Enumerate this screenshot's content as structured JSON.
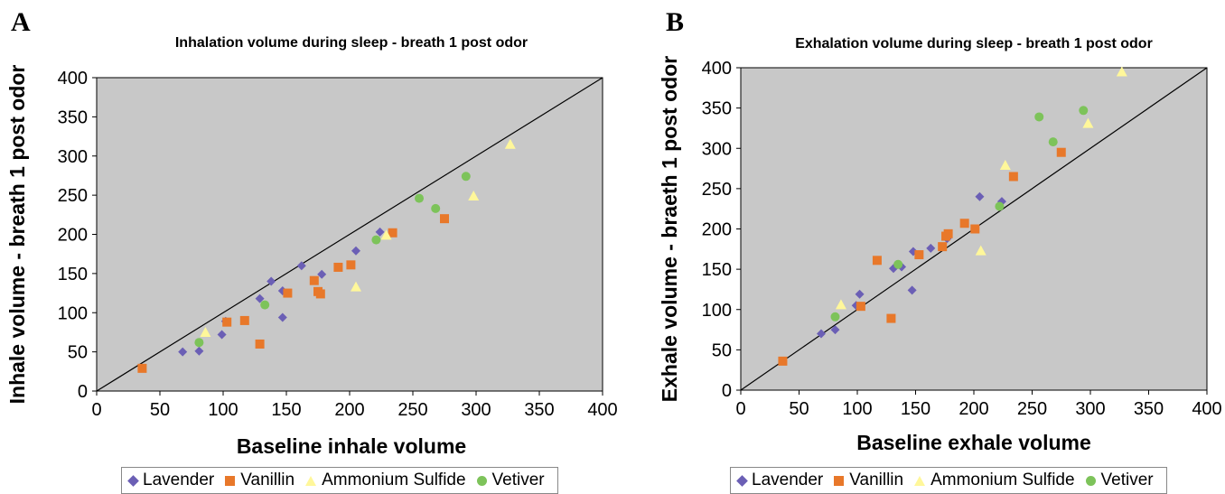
{
  "panels": [
    {
      "letter": "A"
    },
    {
      "letter": "B"
    }
  ],
  "legend": [
    {
      "name": "Lavender",
      "color": "#6b5fb5",
      "marker": "diamond"
    },
    {
      "name": "Vanillin",
      "color": "#e8782a",
      "marker": "square"
    },
    {
      "name": "Ammonium Sulfide",
      "color": "#fff79a",
      "marker": "triangle"
    },
    {
      "name": "Vetiver",
      "color": "#7dc35a",
      "marker": "circle"
    }
  ],
  "chart_data": [
    {
      "type": "scatter",
      "title": "Inhalation volume during sleep - breath 1 post odor",
      "xlabel": "Baseline inhale volume",
      "ylabel": "Inhale volume - breath 1 post odor",
      "xlim": [
        0,
        400
      ],
      "ylim": [
        0,
        400
      ],
      "xticks": [
        0,
        50,
        100,
        150,
        200,
        250,
        300,
        350,
        400
      ],
      "yticks": [
        0,
        50,
        100,
        150,
        200,
        250,
        300,
        350,
        400
      ],
      "plot_background": "#c8c8c8",
      "reference_line": "y = x",
      "legend_position": "bottom",
      "series": [
        {
          "name": "Lavender",
          "points": [
            [
              68,
              50
            ],
            [
              81,
              51
            ],
            [
              99,
              72
            ],
            [
              102,
              89
            ],
            [
              129,
              118
            ],
            [
              138,
              140
            ],
            [
              147,
              94
            ],
            [
              147,
              128
            ],
            [
              162,
              160
            ],
            [
              178,
              149
            ],
            [
              205,
              179
            ],
            [
              224,
              203
            ]
          ]
        },
        {
          "name": "Vanillin",
          "points": [
            [
              36,
              29
            ],
            [
              103,
              88
            ],
            [
              117,
              90
            ],
            [
              129,
              60
            ],
            [
              151,
              125
            ],
            [
              172,
              141
            ],
            [
              175,
              127
            ],
            [
              177,
              124
            ],
            [
              191,
              158
            ],
            [
              201,
              161
            ],
            [
              234,
              202
            ],
            [
              275,
              220
            ]
          ]
        },
        {
          "name": "Ammonium Sulfide",
          "points": [
            [
              86,
              75
            ],
            [
              205,
              133
            ],
            [
              229,
              199
            ],
            [
              298,
              249
            ],
            [
              327,
              315
            ]
          ]
        },
        {
          "name": "Vetiver",
          "points": [
            [
              81,
              62
            ],
            [
              133,
              110
            ],
            [
              221,
              193
            ],
            [
              255,
              246
            ],
            [
              268,
              233
            ],
            [
              292,
              274
            ]
          ]
        }
      ]
    },
    {
      "type": "scatter",
      "title": "Exhalation volume during sleep - breath 1 post odor",
      "xlabel": "Baseline exhale volume",
      "ylabel": "Exhale volume - braeth 1 post odor",
      "xlim": [
        0,
        400
      ],
      "ylim": [
        0,
        400
      ],
      "xticks": [
        0,
        50,
        100,
        150,
        200,
        250,
        300,
        350,
        400
      ],
      "yticks": [
        0,
        50,
        100,
        150,
        200,
        250,
        300,
        350,
        400
      ],
      "plot_background": "#c8c8c8",
      "reference_line": "y = x",
      "legend_position": "bottom",
      "series": [
        {
          "name": "Lavender",
          "points": [
            [
              69,
              70
            ],
            [
              81,
              75
            ],
            [
              99,
              105
            ],
            [
              102,
              119
            ],
            [
              131,
              151
            ],
            [
              138,
              153
            ],
            [
              147,
              124
            ],
            [
              148,
              172
            ],
            [
              163,
              176
            ],
            [
              177,
              188
            ],
            [
              205,
              240
            ],
            [
              224,
              234
            ]
          ]
        },
        {
          "name": "Vanillin",
          "points": [
            [
              36,
              36
            ],
            [
              103,
              104
            ],
            [
              117,
              161
            ],
            [
              129,
              89
            ],
            [
              153,
              168
            ],
            [
              173,
              178
            ],
            [
              176,
              191
            ],
            [
              178,
              194
            ],
            [
              192,
              207
            ],
            [
              201,
              200
            ],
            [
              234,
              265
            ],
            [
              275,
              295
            ]
          ]
        },
        {
          "name": "Ammonium Sulfide",
          "points": [
            [
              86,
              106
            ],
            [
              206,
              173
            ],
            [
              227,
              279
            ],
            [
              298,
              331
            ],
            [
              327,
              395
            ]
          ]
        },
        {
          "name": "Vetiver",
          "points": [
            [
              81,
              91
            ],
            [
              135,
              156
            ],
            [
              222,
              228
            ],
            [
              256,
              339
            ],
            [
              268,
              308
            ],
            [
              294,
              347
            ]
          ]
        }
      ]
    }
  ]
}
